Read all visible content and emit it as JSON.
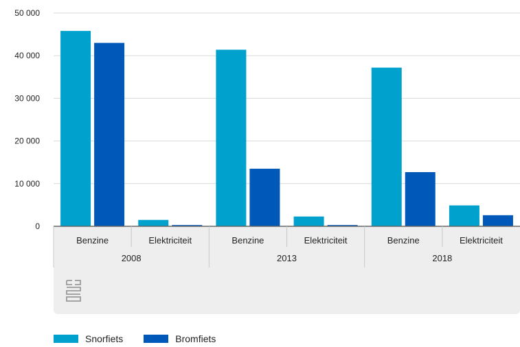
{
  "chart_data": {
    "type": "bar",
    "groups": [
      "2008",
      "2013",
      "2018"
    ],
    "categories": [
      "Benzine",
      "Elektriciteit"
    ],
    "series": [
      {
        "name": "Snorfiets",
        "color": "#00a1cd",
        "values": [
          [
            45800,
            1500
          ],
          [
            41400,
            2300
          ],
          [
            37200,
            4900
          ]
        ]
      },
      {
        "name": "Bromfiets",
        "color": "#0058b8",
        "values": [
          [
            43000,
            300
          ],
          [
            13500,
            300
          ],
          [
            12700,
            2600
          ]
        ]
      }
    ],
    "ylim": [
      0,
      50000
    ],
    "yticks": [
      0,
      10000,
      20000,
      30000,
      40000,
      50000
    ],
    "ytick_labels": [
      "0",
      "10 000",
      "20 000",
      "30 000",
      "40 000",
      "50 000"
    ],
    "grid": true,
    "legend": "bottom-left"
  },
  "logo_icon": "cbs-logo-icon"
}
